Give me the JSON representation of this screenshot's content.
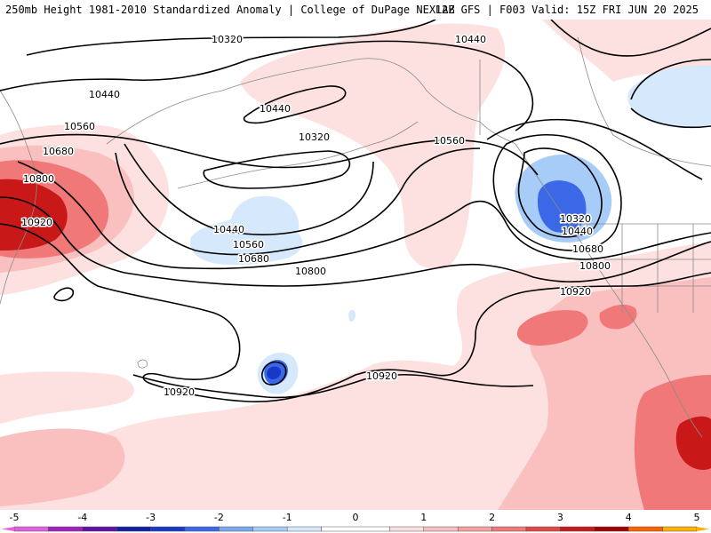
{
  "header": {
    "title_left": "250mb Height 1981-2010 Standardized Anomaly | College of DuPage NEXLAB",
    "title_right": "12Z GFS | F003 Valid: 15Z FRI JUN 20 2025"
  },
  "colorbar": {
    "tick_labels": [
      "-5",
      "-4",
      "-3",
      "-2",
      "-1",
      "0",
      "1",
      "2",
      "3",
      "4",
      "5"
    ],
    "bins": [
      {
        "from": -5.0,
        "to": -4.5,
        "color": "#e060e0"
      },
      {
        "from": -4.5,
        "to": -4.0,
        "color": "#a020c0"
      },
      {
        "from": -4.0,
        "to": -3.5,
        "color": "#6010a0"
      },
      {
        "from": -3.5,
        "to": -3.0,
        "color": "#1020a0"
      },
      {
        "from": -3.0,
        "to": -2.5,
        "color": "#1838c8"
      },
      {
        "from": -2.5,
        "to": -2.0,
        "color": "#3a68e6"
      },
      {
        "from": -2.0,
        "to": -1.5,
        "color": "#78a8f0"
      },
      {
        "from": -1.5,
        "to": -1.0,
        "color": "#a8ccf8"
      },
      {
        "from": -1.0,
        "to": -0.5,
        "color": "#d6e8fc"
      },
      {
        "from": -0.5,
        "to": 0.5,
        "color": "#ffffff"
      },
      {
        "from": 0.5,
        "to": 1.0,
        "color": "#fde0e0"
      },
      {
        "from": 1.0,
        "to": 1.5,
        "color": "#fac0c0"
      },
      {
        "from": 1.5,
        "to": 2.0,
        "color": "#f8a0a0"
      },
      {
        "from": 2.0,
        "to": 2.5,
        "color": "#f07878"
      },
      {
        "from": 2.5,
        "to": 3.0,
        "color": "#e04848"
      },
      {
        "from": 3.0,
        "to": 3.5,
        "color": "#c81818"
      },
      {
        "from": 3.5,
        "to": 4.0,
        "color": "#a00000"
      },
      {
        "from": 4.0,
        "to": 4.5,
        "color": "#ff6000"
      },
      {
        "from": 4.5,
        "to": 5.0,
        "color": "#ffb000"
      }
    ]
  },
  "contours": {
    "labels": [
      "10320",
      "10440",
      "10440",
      "10440",
      "10560",
      "10680",
      "10800",
      "10920",
      "10320",
      "10440",
      "10560",
      "10680",
      "10320",
      "10440",
      "10560",
      "10680",
      "10800",
      "10920",
      "10920",
      "10800",
      "10920"
    ]
  },
  "colors": {
    "contour": "#000000",
    "border": "#8a8a8a",
    "pos_light": "#fde0e0",
    "pos_med": "#fac0c0",
    "pos_strong": "#f07878",
    "pos_deep": "#c81818",
    "pos_darkest": "#a00000",
    "neg_light": "#d6e8fc",
    "neg_med": "#a8ccf8",
    "neg_strong": "#3a68e6",
    "neg_deep": "#1838c8"
  }
}
